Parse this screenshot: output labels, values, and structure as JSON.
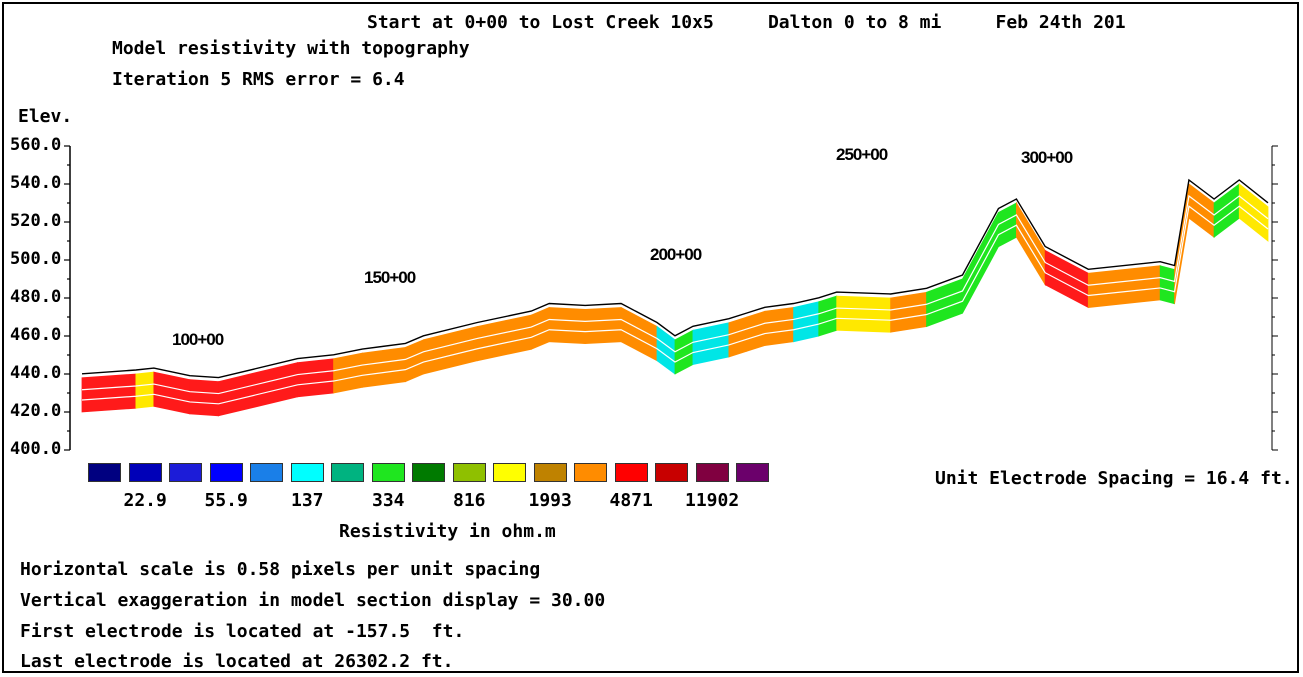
{
  "header": {
    "line": "Start at 0+00 to Lost Creek 10x5     Dalton 0 to 8 mi     Feb 24th 201",
    "subtitle1": "Model resistivity with topography",
    "subtitle2": "Iteration 5 RMS error = 6.4"
  },
  "chart_data": {
    "type": "heatmap",
    "title": "Model resistivity with topography",
    "ylabel": "Elev.",
    "ylim": [
      400,
      560
    ],
    "yticks": [
      "560.0",
      "540.0",
      "520.0",
      "500.0",
      "480.0",
      "460.0",
      "440.0",
      "420.0",
      "400.0"
    ],
    "station_labels": [
      "100+00",
      "150+00",
      "200+00",
      "250+00",
      "300+00"
    ],
    "profile_x": [
      0,
      15,
      20,
      30,
      38,
      60,
      70,
      78,
      90,
      95,
      110,
      125,
      130,
      140,
      150,
      160,
      165,
      170,
      180,
      185,
      190,
      198,
      205,
      210,
      225,
      235,
      245,
      255,
      260,
      268,
      280,
      300,
      304,
      308,
      315,
      322,
      330
    ],
    "profile_surface": [
      438,
      440,
      441,
      437,
      436,
      446,
      448,
      451,
      454,
      458,
      465,
      471,
      475,
      474,
      475,
      465,
      458,
      463,
      467,
      470,
      473,
      475,
      478,
      481,
      480,
      483,
      490,
      525,
      530,
      505,
      493,
      497,
      495,
      540,
      530,
      540,
      528
    ],
    "profile_colors": [
      "#ff1a1a",
      "#ffe800",
      "#ff1a1a",
      "#ff1a1a",
      "#ff1a1a",
      "#ff1a1a",
      "#ff8c00",
      "#ff8c00",
      "#ff8c00",
      "#ff8c00",
      "#ff8c00",
      "#ff8c00",
      "#ff8c00",
      "#ff8c00",
      "#ff8c00",
      "#00e6e6",
      "#1fe61f",
      "#00e6e6",
      "#ff8c00",
      "#ff8c00",
      "#ff8c00",
      "#00e6e6",
      "#1fe61f",
      "#ffe800",
      "#ff8c00",
      "#1fe61f",
      "#1fe61f",
      "#1fe61f",
      "#ff8c00",
      "#ff1a1a",
      "#ff8c00",
      "#1fe61f",
      "#ff8c00",
      "#ff8c00",
      "#1fe61f",
      "#ffe800",
      "#ff8c00"
    ],
    "legend": {
      "title": "Resistivity in ohm.m",
      "labels": [
        "22.9",
        "55.9",
        "137",
        "334",
        "816",
        "1993",
        "4871",
        "11902"
      ],
      "colors": [
        "#000080",
        "#0000b8",
        "#1c1cd8",
        "#0000ff",
        "#1a7fe8",
        "#00ffff",
        "#00b380",
        "#1fe61f",
        "#007a00",
        "#8fc000",
        "#ffff00",
        "#bf8200",
        "#ff8c00",
        "#ff0000",
        "#c80000",
        "#800040",
        "#6b006b"
      ]
    }
  },
  "footer": {
    "spacing": "Unit Electrode Spacing = 16.4 ft.",
    "notes": [
      "Horizontal scale is 0.58 pixels per unit spacing",
      "Vertical exaggeration in model section display = 30.00",
      "First electrode is located at -157.5  ft.",
      "Last electrode is located at 26302.2 ft."
    ]
  }
}
